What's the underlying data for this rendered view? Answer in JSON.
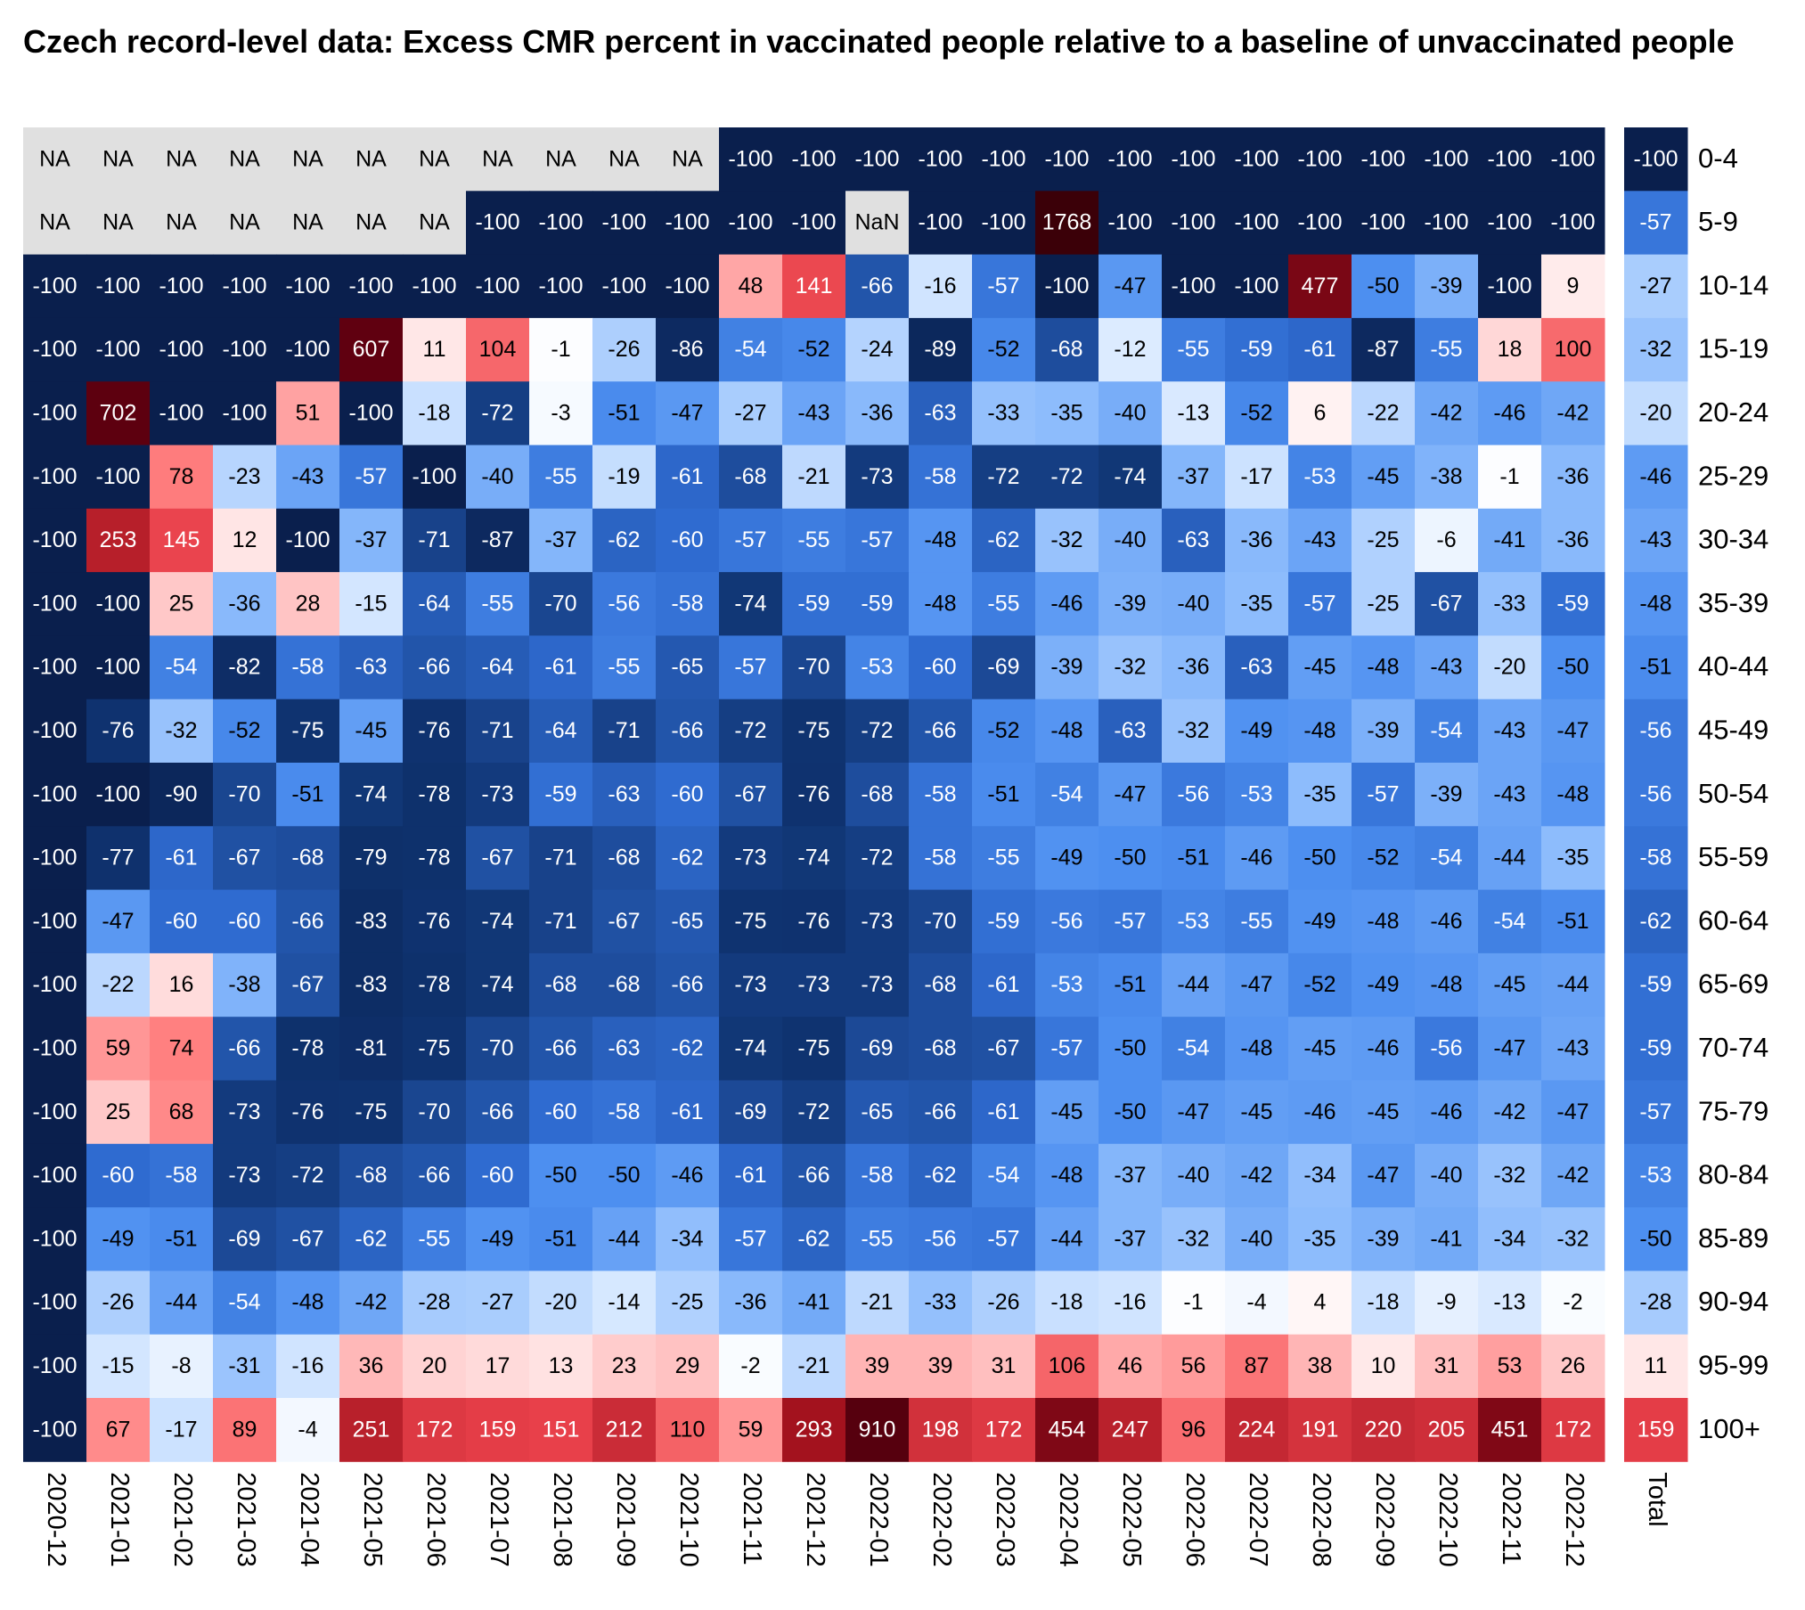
{
  "chart_data": {
    "type": "heatmap",
    "title": "Czech record-level data: Excess CMR percent in vaccinated people relative to a baseline of unvaccinated people",
    "categories": [
      "2020-12",
      "2021-01",
      "2021-02",
      "2021-03",
      "2021-04",
      "2021-05",
      "2021-06",
      "2021-07",
      "2021-08",
      "2021-09",
      "2021-10",
      "2021-11",
      "2021-12",
      "2022-01",
      "2022-02",
      "2022-03",
      "2022-04",
      "2022-05",
      "2022-06",
      "2022-07",
      "2022-08",
      "2022-09",
      "2022-10",
      "2022-11",
      "2022-12"
    ],
    "total_label": "Total",
    "na_color": "#e0e0e0",
    "colorscale": [
      [
        -100,
        "#0a1f4d"
      ],
      [
        -75,
        "#0f3370"
      ],
      [
        -60,
        "#2f6bd0"
      ],
      [
        -50,
        "#4d8ff0"
      ],
      [
        -35,
        "#8dbcfc"
      ],
      [
        -15,
        "#d3e6ff"
      ],
      [
        0,
        "#ffffff"
      ],
      [
        25,
        "#ffc8c8"
      ],
      [
        75,
        "#ff7f7f"
      ],
      [
        150,
        "#e8404a"
      ],
      [
        300,
        "#a0101c"
      ],
      [
        600,
        "#600010"
      ],
      [
        1800,
        "#3a0008"
      ]
    ],
    "series": [
      {
        "name": "0-4",
        "values": [
          null,
          null,
          null,
          null,
          null,
          null,
          null,
          null,
          null,
          null,
          null,
          -100,
          -100,
          -100,
          -100,
          -100,
          -100,
          -100,
          -100,
          -100,
          -100,
          -100,
          -100,
          -100,
          -100
        ],
        "value_labels": [
          "NA",
          "NA",
          "NA",
          "NA",
          "NA",
          "NA",
          "NA",
          "NA",
          "NA",
          "NA",
          "NA",
          "-100",
          "-100",
          "-100",
          "-100",
          "-100",
          "-100",
          "-100",
          "-100",
          "-100",
          "-100",
          "-100",
          "-100",
          "-100",
          "-100"
        ],
        "total": -100
      },
      {
        "name": "5-9",
        "values": [
          null,
          null,
          null,
          null,
          null,
          null,
          null,
          -100,
          -100,
          -100,
          -100,
          -100,
          -100,
          null,
          -100,
          -100,
          1768,
          -100,
          -100,
          -100,
          -100,
          -100,
          -100,
          -100,
          -100
        ],
        "value_labels": [
          "NA",
          "NA",
          "NA",
          "NA",
          "NA",
          "NA",
          "NA",
          "-100",
          "-100",
          "-100",
          "-100",
          "-100",
          "-100",
          "NaN",
          "-100",
          "-100",
          "1768",
          "-100",
          "-100",
          "-100",
          "-100",
          "-100",
          "-100",
          "-100",
          "-100"
        ],
        "total": -57
      },
      {
        "name": "10-14",
        "values": [
          -100,
          -100,
          -100,
          -100,
          -100,
          -100,
          -100,
          -100,
          -100,
          -100,
          -100,
          48,
          141,
          -66,
          -16,
          -57,
          -100,
          -47,
          -100,
          -100,
          477,
          -50,
          -39,
          -100,
          9
        ],
        "total": -27
      },
      {
        "name": "15-19",
        "values": [
          -100,
          -100,
          -100,
          -100,
          -100,
          607,
          11,
          104,
          -1,
          -26,
          -86,
          -54,
          -52,
          -24,
          -89,
          -52,
          -68,
          -12,
          -55,
          -59,
          -61,
          -87,
          -55,
          18,
          100
        ],
        "total": -32
      },
      {
        "name": "20-24",
        "values": [
          -100,
          702,
          -100,
          -100,
          51,
          -100,
          -18,
          -72,
          -3,
          -51,
          -47,
          -27,
          -43,
          -36,
          -63,
          -33,
          -35,
          -40,
          -13,
          -52,
          6,
          -22,
          -42,
          -46,
          -42
        ],
        "total": -20
      },
      {
        "name": "25-29",
        "values": [
          -100,
          -100,
          78,
          -23,
          -43,
          -57,
          -100,
          -40,
          -55,
          -19,
          -61,
          -68,
          -21,
          -73,
          -58,
          -72,
          -72,
          -74,
          -37,
          -17,
          -53,
          -45,
          -38,
          -1,
          -36
        ],
        "total": -46
      },
      {
        "name": "30-34",
        "values": [
          -100,
          253,
          145,
          12,
          -100,
          -37,
          -71,
          -87,
          -37,
          -62,
          -60,
          -57,
          -55,
          -57,
          -48,
          -62,
          -32,
          -40,
          -63,
          -36,
          -43,
          -25,
          -6,
          -41,
          -36
        ],
        "total": -43
      },
      {
        "name": "35-39",
        "values": [
          -100,
          -100,
          25,
          -36,
          28,
          -15,
          -64,
          -55,
          -70,
          -56,
          -58,
          -74,
          -59,
          -59,
          -48,
          -55,
          -46,
          -39,
          -40,
          -35,
          -57,
          -25,
          -67,
          -33,
          -59
        ],
        "total": -48
      },
      {
        "name": "40-44",
        "values": [
          -100,
          -100,
          -54,
          -82,
          -58,
          -63,
          -66,
          -64,
          -61,
          -55,
          -65,
          -57,
          -70,
          -53,
          -60,
          -69,
          -39,
          -32,
          -36,
          -63,
          -45,
          -48,
          -43,
          -20,
          -50
        ],
        "total": -51
      },
      {
        "name": "45-49",
        "values": [
          -100,
          -76,
          -32,
          -52,
          -75,
          -45,
          -76,
          -71,
          -64,
          -71,
          -66,
          -72,
          -75,
          -72,
          -66,
          -52,
          -48,
          -63,
          -32,
          -49,
          -48,
          -39,
          -54,
          -43,
          -47
        ],
        "total": -56
      },
      {
        "name": "50-54",
        "values": [
          -100,
          -100,
          -90,
          -70,
          -51,
          -74,
          -78,
          -73,
          -59,
          -63,
          -60,
          -67,
          -76,
          -68,
          -58,
          -51,
          -54,
          -47,
          -56,
          -53,
          -35,
          -57,
          -39,
          -43,
          -48
        ],
        "total": -56
      },
      {
        "name": "55-59",
        "values": [
          -100,
          -77,
          -61,
          -67,
          -68,
          -79,
          -78,
          -67,
          -71,
          -68,
          -62,
          -73,
          -74,
          -72,
          -58,
          -55,
          -49,
          -50,
          -51,
          -46,
          -50,
          -52,
          -54,
          -44,
          -35
        ],
        "total": -58
      },
      {
        "name": "60-64",
        "values": [
          -100,
          -47,
          -60,
          -60,
          -66,
          -83,
          -76,
          -74,
          -71,
          -67,
          -65,
          -75,
          -76,
          -73,
          -70,
          -59,
          -56,
          -57,
          -53,
          -55,
          -49,
          -48,
          -46,
          -54,
          -51
        ],
        "total": -62
      },
      {
        "name": "65-69",
        "values": [
          -100,
          -22,
          16,
          -38,
          -67,
          -83,
          -78,
          -74,
          -68,
          -68,
          -66,
          -73,
          -73,
          -73,
          -68,
          -61,
          -53,
          -51,
          -44,
          -47,
          -52,
          -49,
          -48,
          -45,
          -44
        ],
        "total": -59
      },
      {
        "name": "70-74",
        "values": [
          -100,
          59,
          74,
          -66,
          -78,
          -81,
          -75,
          -70,
          -66,
          -63,
          -62,
          -74,
          -75,
          -69,
          -68,
          -67,
          -57,
          -50,
          -54,
          -48,
          -45,
          -46,
          -56,
          -47,
          -43
        ],
        "total": -59
      },
      {
        "name": "75-79",
        "values": [
          -100,
          25,
          68,
          -73,
          -76,
          -75,
          -70,
          -66,
          -60,
          -58,
          -61,
          -69,
          -72,
          -65,
          -66,
          -61,
          -45,
          -50,
          -47,
          -45,
          -46,
          -45,
          -46,
          -42,
          -47
        ],
        "total": -57
      },
      {
        "name": "80-84",
        "values": [
          -100,
          -60,
          -58,
          -73,
          -72,
          -68,
          -66,
          -60,
          -50,
          -50,
          -46,
          -61,
          -66,
          -58,
          -62,
          -54,
          -48,
          -37,
          -40,
          -42,
          -34,
          -47,
          -40,
          -32,
          -42
        ],
        "total": -53
      },
      {
        "name": "85-89",
        "values": [
          -100,
          -49,
          -51,
          -69,
          -67,
          -62,
          -55,
          -49,
          -51,
          -44,
          -34,
          -57,
          -62,
          -55,
          -56,
          -57,
          -44,
          -37,
          -32,
          -40,
          -35,
          -39,
          -41,
          -34,
          -32
        ],
        "total": -50
      },
      {
        "name": "90-94",
        "values": [
          -100,
          -26,
          -44,
          -54,
          -48,
          -42,
          -28,
          -27,
          -20,
          -14,
          -25,
          -36,
          -41,
          -21,
          -33,
          -26,
          -18,
          -16,
          -1,
          -4,
          4,
          -18,
          -9,
          -13,
          -2
        ],
        "total": -28
      },
      {
        "name": "95-99",
        "values": [
          -100,
          -15,
          -8,
          -31,
          -16,
          36,
          20,
          17,
          13,
          23,
          29,
          -2,
          -21,
          39,
          39,
          31,
          106,
          46,
          56,
          87,
          38,
          10,
          31,
          53,
          26
        ],
        "total": 11
      },
      {
        "name": "100+",
        "values": [
          -100,
          67,
          -17,
          89,
          -4,
          251,
          172,
          159,
          151,
          212,
          110,
          59,
          293,
          910,
          198,
          172,
          454,
          247,
          96,
          224,
          191,
          220,
          205,
          451,
          172
        ],
        "total": 159
      }
    ]
  }
}
